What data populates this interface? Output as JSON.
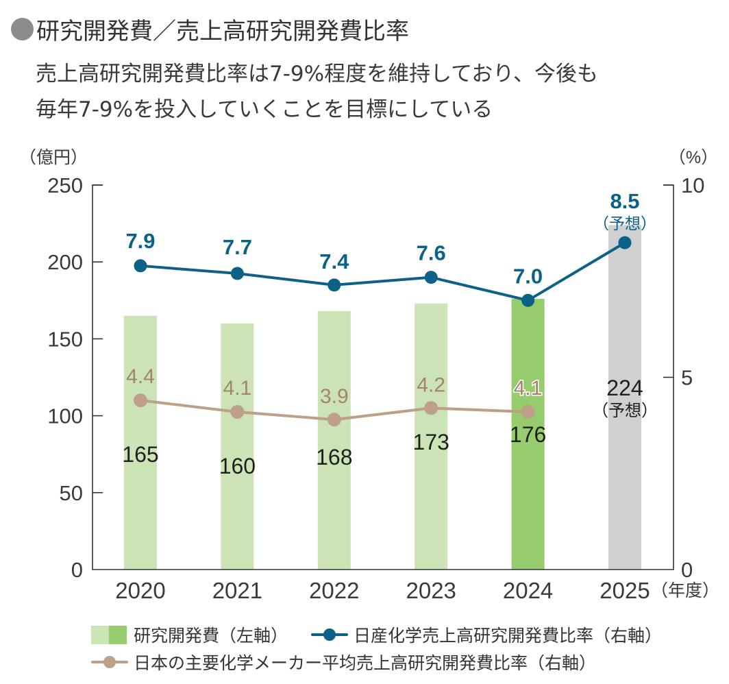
{
  "header": {
    "title": "研究開発費／売上高研究開発費比率",
    "subtitle_lines": [
      "売上高研究開発費比率は7-9%程度を維持しており、今後も",
      "毎年7-9%を投入していくことを目標にしている"
    ]
  },
  "colors": {
    "bar_actual": "#cce3b6",
    "bar_latest": "#96cc6e",
    "bar_forecast": "#cfd0d2",
    "nissan_line": "#0b6186",
    "industry_line": "#bd9f8a",
    "industry_label": "#a3836e",
    "text": "#333333",
    "axis": "#333333",
    "title_dot": "#8b8c8e"
  },
  "chart_data": {
    "type": "bar",
    "title": "研究開発費／売上高研究開発費比率",
    "categories": [
      "2020",
      "2021",
      "2022",
      "2023",
      "2024",
      "2025"
    ],
    "x_unit_label": "（年度）",
    "left_axis": {
      "label": "（億円）",
      "ylim": [
        0,
        250
      ],
      "ticks": [
        "0",
        "50",
        "100",
        "150",
        "200",
        "250"
      ]
    },
    "right_axis": {
      "label": "（%）",
      "ylim": [
        0,
        10
      ],
      "ticks": [
        "0",
        "5",
        "10"
      ]
    },
    "grid": false,
    "series": [
      {
        "name": "研究開発費（左軸）",
        "type": "bar",
        "axis": "left",
        "values": [
          165,
          160,
          168,
          173,
          176,
          224
        ],
        "labels": [
          "165",
          "160",
          "168",
          "173",
          "176",
          "224"
        ],
        "styles": [
          "actual",
          "actual",
          "actual",
          "actual",
          "latest",
          "forecast"
        ]
      },
      {
        "name": "日産化学売上高研究開発費比率（右軸）",
        "type": "line",
        "axis": "right",
        "values": [
          7.9,
          7.7,
          7.4,
          7.6,
          7.0,
          8.5
        ],
        "labels": [
          "7.9",
          "7.7",
          "7.4",
          "7.6",
          "7.0",
          "8.5"
        ]
      },
      {
        "name": "日本の主要化学メーカー平均売上高研究開発費比率（右軸）",
        "type": "line",
        "axis": "right",
        "values": [
          4.4,
          4.1,
          3.9,
          4.2,
          4.1,
          null
        ],
        "labels": [
          "4.4",
          "4.1",
          "3.9",
          "4.2",
          "4.1",
          null
        ]
      }
    ],
    "forecast_note": "（予想）",
    "forecast_index": 5,
    "legend_position": "bottom"
  },
  "legend": {
    "items": [
      "研究開発費（左軸）",
      "日産化学売上高研究開発費比率（右軸）",
      "日本の主要化学メーカー平均売上高研究開発費比率（右軸）"
    ]
  }
}
